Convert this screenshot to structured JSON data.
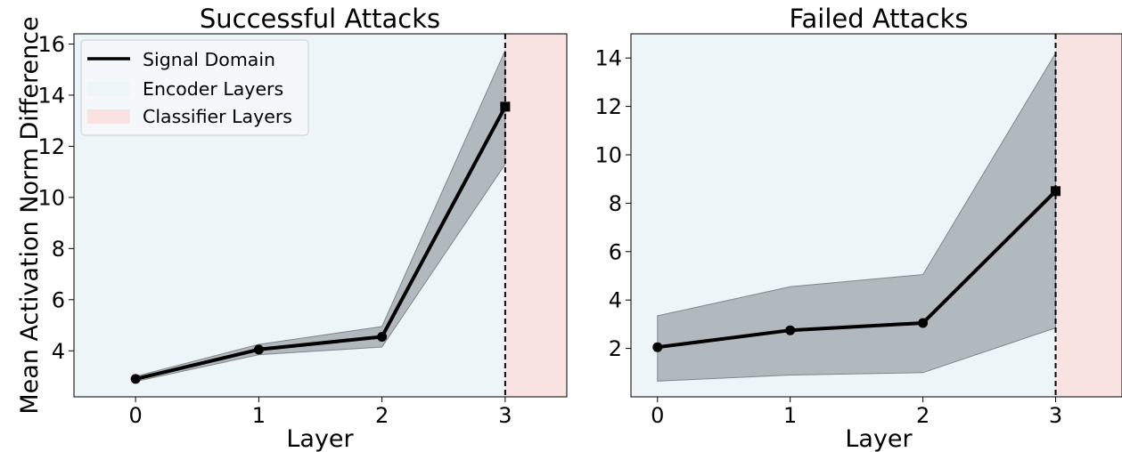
{
  "chart_data": [
    {
      "type": "line",
      "title": "Successful Attacks",
      "xlabel": "Layer",
      "ylabel": "Mean Activation Norm Difference",
      "xlim": [
        -0.5,
        3.5
      ],
      "ylim": [
        2.2,
        16.4
      ],
      "xticks": [
        "0",
        "1",
        "2",
        "3"
      ],
      "yticks": [
        "4",
        "6",
        "8",
        "10",
        "12",
        "14",
        "16"
      ],
      "series": [
        {
          "name": "Signal Domain",
          "x": [
            0,
            1,
            2,
            3
          ],
          "y": [
            2.9,
            4.05,
            4.55,
            13.55
          ],
          "band_low": [
            2.8,
            3.85,
            4.15,
            11.3
          ],
          "band_high": [
            3.0,
            4.25,
            4.95,
            15.75
          ]
        }
      ],
      "regions": [
        {
          "name": "Encoder Layers",
          "from": -0.5,
          "to": 3,
          "color": "#eef5f9"
        },
        {
          "name": "Classifier Layers",
          "from": 3,
          "to": 3.5,
          "color": "#f9e2e2"
        }
      ],
      "legend": "top-left",
      "grid": false
    },
    {
      "type": "line",
      "title": "Failed Attacks",
      "xlabel": "Layer",
      "ylabel": "",
      "xlim": [
        -0.2,
        3.5
      ],
      "ylim": [
        0,
        15
      ],
      "xticks": [
        "0",
        "1",
        "2",
        "3"
      ],
      "yticks": [
        "2",
        "4",
        "6",
        "8",
        "10",
        "12",
        "14"
      ],
      "series": [
        {
          "name": "Signal Domain",
          "x": [
            0,
            1,
            2,
            3
          ],
          "y": [
            2.05,
            2.75,
            3.05,
            8.5
          ],
          "band_low": [
            0.65,
            0.9,
            1.0,
            2.85
          ],
          "band_high": [
            3.35,
            4.55,
            5.05,
            14.2
          ]
        }
      ],
      "regions": [
        {
          "name": "Encoder Layers",
          "from": -0.2,
          "to": 3,
          "color": "#eef5f9"
        },
        {
          "name": "Classifier Layers",
          "from": 3,
          "to": 3.5,
          "color": "#f9e2e2"
        }
      ],
      "grid": false
    }
  ],
  "legend": {
    "items": [
      {
        "label": "Signal Domain",
        "kind": "line",
        "color": "#000000"
      },
      {
        "label": "Encoder Layers",
        "kind": "patch",
        "color": "#eef5f9"
      },
      {
        "label": "Classifier Layers",
        "kind": "patch",
        "color": "#f9e2e2"
      }
    ]
  },
  "colors": {
    "line": "#000000",
    "band": "#9aa2a6",
    "encoder": "#eef5f9",
    "classifier": "#f9e2e2"
  }
}
